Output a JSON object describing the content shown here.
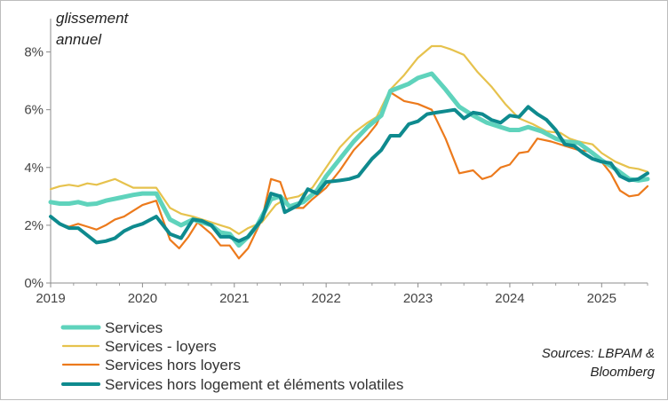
{
  "chart_data": {
    "type": "line",
    "ylabel_line1": "glissement",
    "ylabel_line2": "annuel",
    "source_line1": "Sources: LBPAM &",
    "source_line2": "Bloomberg",
    "x_range": [
      2019.0,
      2025.5
    ],
    "ylim": [
      0,
      9
    ],
    "yticks": [
      0,
      2,
      4,
      6,
      8
    ],
    "ytick_labels": [
      "0%",
      "2%",
      "4%",
      "6%",
      "8%"
    ],
    "xticks": [
      2019,
      2020,
      2021,
      2022,
      2023,
      2024,
      2025
    ],
    "xtick_labels": [
      "2019",
      "2020",
      "2021",
      "2022",
      "2023",
      "2024",
      "2025"
    ],
    "series": [
      {
        "name": "Services",
        "color": "#5fd3bc",
        "width": 5,
        "points": [
          [
            2019.0,
            2.8
          ],
          [
            2019.1,
            2.75
          ],
          [
            2019.2,
            2.75
          ],
          [
            2019.3,
            2.8
          ],
          [
            2019.4,
            2.72
          ],
          [
            2019.5,
            2.75
          ],
          [
            2019.6,
            2.85
          ],
          [
            2019.75,
            2.95
          ],
          [
            2019.9,
            3.05
          ],
          [
            2020.0,
            3.1
          ],
          [
            2020.15,
            3.1
          ],
          [
            2020.3,
            2.2
          ],
          [
            2020.42,
            2.0
          ],
          [
            2020.55,
            2.2
          ],
          [
            2020.65,
            2.1
          ],
          [
            2020.75,
            2.0
          ],
          [
            2020.85,
            1.75
          ],
          [
            2020.95,
            1.7
          ],
          [
            2021.05,
            1.3
          ],
          [
            2021.15,
            1.6
          ],
          [
            2021.25,
            2.0
          ],
          [
            2021.4,
            2.9
          ],
          [
            2021.5,
            3.0
          ],
          [
            2021.6,
            2.65
          ],
          [
            2021.75,
            2.8
          ],
          [
            2021.9,
            3.2
          ],
          [
            2022.0,
            3.7
          ],
          [
            2022.15,
            4.3
          ],
          [
            2022.3,
            4.9
          ],
          [
            2022.45,
            5.4
          ],
          [
            2022.6,
            5.8
          ],
          [
            2022.7,
            6.65
          ],
          [
            2022.9,
            6.9
          ],
          [
            2023.0,
            7.1
          ],
          [
            2023.15,
            7.25
          ],
          [
            2023.3,
            6.7
          ],
          [
            2023.45,
            6.1
          ],
          [
            2023.6,
            5.8
          ],
          [
            2023.75,
            5.55
          ],
          [
            2023.9,
            5.4
          ],
          [
            2024.0,
            5.3
          ],
          [
            2024.1,
            5.3
          ],
          [
            2024.2,
            5.4
          ],
          [
            2024.35,
            5.25
          ],
          [
            2024.5,
            5.0
          ],
          [
            2024.6,
            4.9
          ],
          [
            2024.75,
            4.85
          ],
          [
            2024.9,
            4.5
          ],
          [
            2025.0,
            4.25
          ],
          [
            2025.15,
            3.95
          ],
          [
            2025.3,
            3.6
          ],
          [
            2025.4,
            3.55
          ],
          [
            2025.5,
            3.6
          ]
        ]
      },
      {
        "name": "Services  - loyers",
        "color": "#e6c24d",
        "width": 2.2,
        "points": [
          [
            2019.0,
            3.25
          ],
          [
            2019.1,
            3.35
          ],
          [
            2019.2,
            3.4
          ],
          [
            2019.3,
            3.35
          ],
          [
            2019.4,
            3.45
          ],
          [
            2019.5,
            3.4
          ],
          [
            2019.6,
            3.5
          ],
          [
            2019.7,
            3.6
          ],
          [
            2019.8,
            3.45
          ],
          [
            2019.9,
            3.3
          ],
          [
            2020.0,
            3.3
          ],
          [
            2020.15,
            3.3
          ],
          [
            2020.3,
            2.6
          ],
          [
            2020.42,
            2.4
          ],
          [
            2020.55,
            2.3
          ],
          [
            2020.65,
            2.2
          ],
          [
            2020.75,
            2.1
          ],
          [
            2020.85,
            2.0
          ],
          [
            2020.95,
            1.9
          ],
          [
            2021.05,
            1.7
          ],
          [
            2021.15,
            1.9
          ],
          [
            2021.3,
            2.1
          ],
          [
            2021.45,
            2.7
          ],
          [
            2021.55,
            2.9
          ],
          [
            2021.7,
            3.0
          ],
          [
            2021.85,
            3.3
          ],
          [
            2022.0,
            4.0
          ],
          [
            2022.15,
            4.7
          ],
          [
            2022.3,
            5.2
          ],
          [
            2022.45,
            5.55
          ],
          [
            2022.55,
            5.75
          ],
          [
            2022.7,
            6.7
          ],
          [
            2022.85,
            7.2
          ],
          [
            2023.0,
            7.8
          ],
          [
            2023.15,
            8.2
          ],
          [
            2023.25,
            8.2
          ],
          [
            2023.35,
            8.1
          ],
          [
            2023.5,
            7.9
          ],
          [
            2023.65,
            7.3
          ],
          [
            2023.8,
            6.8
          ],
          [
            2023.95,
            6.2
          ],
          [
            2024.1,
            5.7
          ],
          [
            2024.25,
            5.5
          ],
          [
            2024.4,
            5.25
          ],
          [
            2024.55,
            5.2
          ],
          [
            2024.65,
            5.0
          ],
          [
            2024.75,
            4.9
          ],
          [
            2024.9,
            4.8
          ],
          [
            2025.0,
            4.5
          ],
          [
            2025.15,
            4.2
          ],
          [
            2025.3,
            4.0
          ],
          [
            2025.4,
            3.95
          ],
          [
            2025.5,
            3.85
          ]
        ]
      },
      {
        "name": "Services hors loyers",
        "color": "#ec7a1c",
        "width": 2.2,
        "points": [
          [
            2019.0,
            2.3
          ],
          [
            2019.1,
            2.05
          ],
          [
            2019.2,
            1.95
          ],
          [
            2019.3,
            2.05
          ],
          [
            2019.4,
            1.95
          ],
          [
            2019.5,
            1.85
          ],
          [
            2019.6,
            2.0
          ],
          [
            2019.7,
            2.2
          ],
          [
            2019.8,
            2.3
          ],
          [
            2019.9,
            2.5
          ],
          [
            2020.0,
            2.7
          ],
          [
            2020.15,
            2.85
          ],
          [
            2020.3,
            1.5
          ],
          [
            2020.4,
            1.2
          ],
          [
            2020.5,
            1.6
          ],
          [
            2020.6,
            2.1
          ],
          [
            2020.75,
            1.7
          ],
          [
            2020.85,
            1.3
          ],
          [
            2020.95,
            1.3
          ],
          [
            2021.05,
            0.85
          ],
          [
            2021.15,
            1.2
          ],
          [
            2021.3,
            2.2
          ],
          [
            2021.4,
            3.6
          ],
          [
            2021.5,
            3.5
          ],
          [
            2021.6,
            2.6
          ],
          [
            2021.75,
            2.6
          ],
          [
            2021.85,
            2.9
          ],
          [
            2022.0,
            3.3
          ],
          [
            2022.15,
            3.9
          ],
          [
            2022.3,
            4.6
          ],
          [
            2022.45,
            5.1
          ],
          [
            2022.55,
            5.5
          ],
          [
            2022.7,
            6.6
          ],
          [
            2022.85,
            6.3
          ],
          [
            2023.0,
            6.2
          ],
          [
            2023.15,
            6.0
          ],
          [
            2023.3,
            5.0
          ],
          [
            2023.45,
            3.8
          ],
          [
            2023.6,
            3.9
          ],
          [
            2023.7,
            3.6
          ],
          [
            2023.8,
            3.7
          ],
          [
            2023.9,
            4.0
          ],
          [
            2024.0,
            4.1
          ],
          [
            2024.1,
            4.5
          ],
          [
            2024.2,
            4.55
          ],
          [
            2024.3,
            5.0
          ],
          [
            2024.45,
            4.9
          ],
          [
            2024.6,
            4.75
          ],
          [
            2024.75,
            4.6
          ],
          [
            2024.9,
            4.55
          ],
          [
            2025.0,
            4.2
          ],
          [
            2025.1,
            3.8
          ],
          [
            2025.2,
            3.2
          ],
          [
            2025.3,
            3.0
          ],
          [
            2025.4,
            3.05
          ],
          [
            2025.5,
            3.35
          ]
        ]
      },
      {
        "name": "Services hors logement et éléments volatiles",
        "color": "#0e8a8e",
        "width": 4,
        "points": [
          [
            2019.0,
            2.3
          ],
          [
            2019.1,
            2.05
          ],
          [
            2019.2,
            1.9
          ],
          [
            2019.3,
            1.9
          ],
          [
            2019.4,
            1.65
          ],
          [
            2019.5,
            1.4
          ],
          [
            2019.6,
            1.45
          ],
          [
            2019.7,
            1.55
          ],
          [
            2019.8,
            1.8
          ],
          [
            2019.9,
            1.95
          ],
          [
            2020.0,
            2.05
          ],
          [
            2020.15,
            2.3
          ],
          [
            2020.3,
            1.7
          ],
          [
            2020.42,
            1.55
          ],
          [
            2020.55,
            2.2
          ],
          [
            2020.65,
            2.15
          ],
          [
            2020.75,
            2.0
          ],
          [
            2020.85,
            1.6
          ],
          [
            2020.95,
            1.6
          ],
          [
            2021.05,
            1.45
          ],
          [
            2021.15,
            1.6
          ],
          [
            2021.3,
            2.2
          ],
          [
            2021.4,
            3.1
          ],
          [
            2021.5,
            3.0
          ],
          [
            2021.55,
            2.45
          ],
          [
            2021.7,
            2.7
          ],
          [
            2021.8,
            3.25
          ],
          [
            2021.9,
            3.1
          ],
          [
            2022.0,
            3.5
          ],
          [
            2022.15,
            3.55
          ],
          [
            2022.25,
            3.6
          ],
          [
            2022.35,
            3.7
          ],
          [
            2022.5,
            4.3
          ],
          [
            2022.6,
            4.6
          ],
          [
            2022.7,
            5.1
          ],
          [
            2022.8,
            5.1
          ],
          [
            2022.9,
            5.5
          ],
          [
            2023.0,
            5.6
          ],
          [
            2023.1,
            5.85
          ],
          [
            2023.2,
            5.9
          ],
          [
            2023.3,
            5.95
          ],
          [
            2023.4,
            6.0
          ],
          [
            2023.5,
            5.7
          ],
          [
            2023.6,
            5.9
          ],
          [
            2023.7,
            5.85
          ],
          [
            2023.8,
            5.65
          ],
          [
            2023.9,
            5.55
          ],
          [
            2024.0,
            5.8
          ],
          [
            2024.1,
            5.75
          ],
          [
            2024.2,
            6.1
          ],
          [
            2024.3,
            5.85
          ],
          [
            2024.4,
            5.65
          ],
          [
            2024.5,
            5.3
          ],
          [
            2024.6,
            4.8
          ],
          [
            2024.7,
            4.75
          ],
          [
            2024.8,
            4.5
          ],
          [
            2024.9,
            4.3
          ],
          [
            2025.0,
            4.2
          ],
          [
            2025.1,
            4.15
          ],
          [
            2025.2,
            3.7
          ],
          [
            2025.3,
            3.55
          ],
          [
            2025.4,
            3.6
          ],
          [
            2025.5,
            3.8
          ]
        ]
      }
    ]
  }
}
